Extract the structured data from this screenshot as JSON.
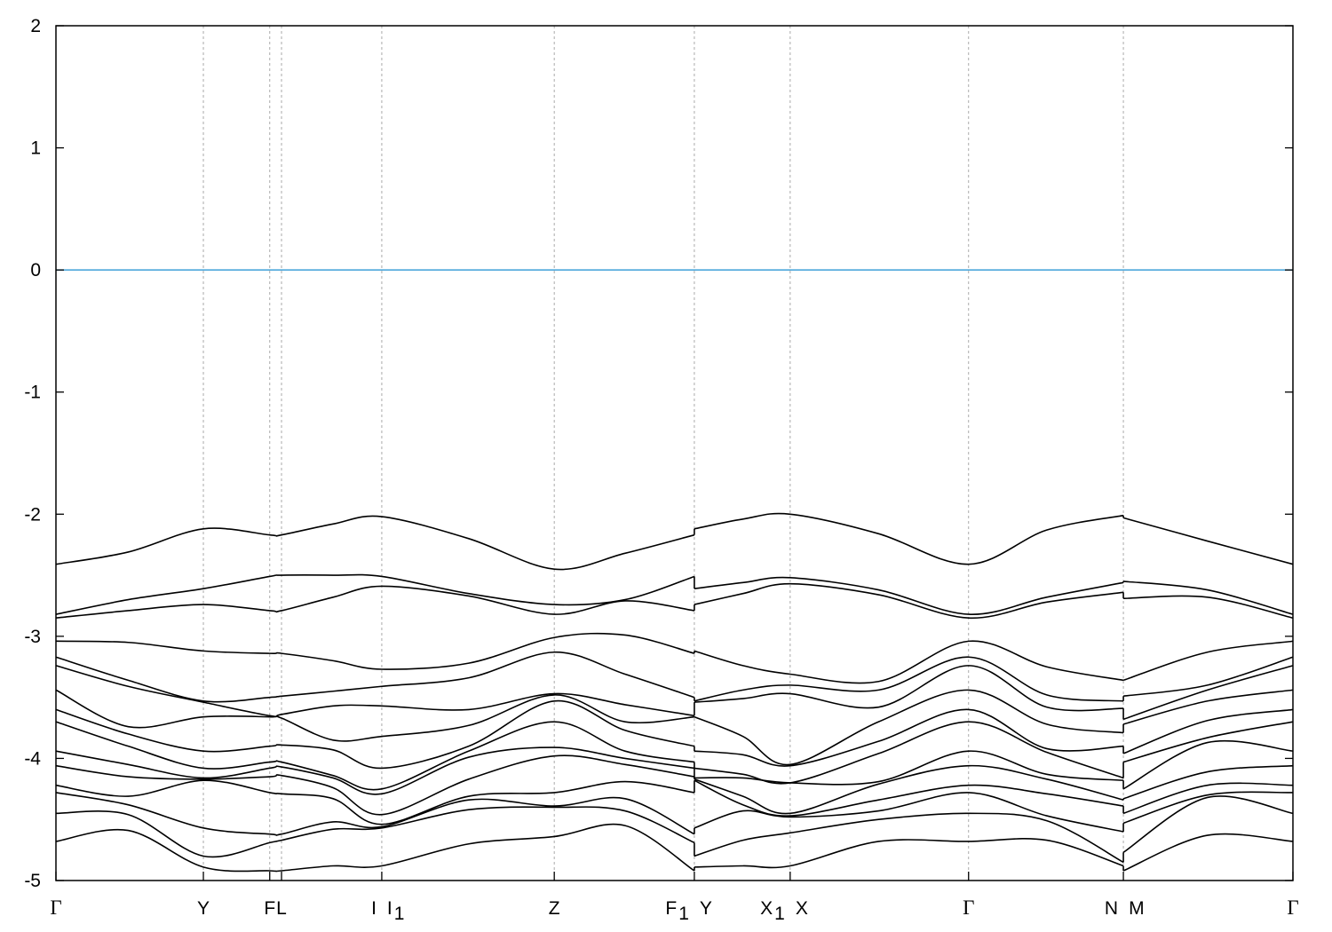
{
  "chart_data": {
    "type": "line",
    "title": "",
    "xlabel": "",
    "ylabel": "",
    "ylim": [
      -5,
      2
    ],
    "yticks": [
      "2",
      "1",
      "0",
      "-1",
      "-2",
      "-3",
      "-4",
      "-5"
    ],
    "ytick_values": [
      2,
      1,
      0,
      -1,
      -2,
      -3,
      -4,
      -5
    ],
    "xlim": [
      0,
      8.39
    ],
    "grid": "vertical dotted lines at high-symmetry points",
    "fermi_level": 0,
    "colors": {
      "bands": "#000000",
      "fermi_line": "#3fa0d8",
      "grid": "#aaaaaa"
    },
    "ticks": [
      {
        "k": 0,
        "label": "Γ",
        "sub": "",
        "anchor": "middle"
      },
      {
        "k": 1.0,
        "label": "Y",
        "sub": "",
        "anchor": "middle"
      },
      {
        "k": 1.45,
        "label": "F",
        "sub": "",
        "anchor": "middle"
      },
      {
        "k": 1.53,
        "label": "L",
        "sub": "",
        "anchor": "middle"
      },
      {
        "k": 2.21,
        "label": "I",
        "sub": "",
        "anchor": "end"
      },
      {
        "k": 2.21,
        "label": "I",
        "sub": "1",
        "anchor": "start"
      },
      {
        "k": 3.38,
        "label": "Z",
        "sub": "",
        "anchor": "middle"
      },
      {
        "k": 4.33,
        "label": "F",
        "sub": "1",
        "anchor": "end"
      },
      {
        "k": 4.33,
        "label": "Y",
        "sub": "",
        "anchor": "start"
      },
      {
        "k": 4.98,
        "label": "X",
        "sub": "1",
        "anchor": "end"
      },
      {
        "k": 4.98,
        "label": "X",
        "sub": "",
        "anchor": "start"
      },
      {
        "k": 6.19,
        "label": "Γ",
        "sub": "",
        "anchor": "middle"
      },
      {
        "k": 7.24,
        "label": "N",
        "sub": "",
        "anchor": "end"
      },
      {
        "k": 7.24,
        "label": "M",
        "sub": "",
        "anchor": "start"
      },
      {
        "k": 8.39,
        "label": "Γ",
        "sub": "",
        "anchor": "middle"
      }
    ],
    "gridlines_k": [
      1.0,
      1.45,
      1.53,
      2.21,
      3.38,
      4.33,
      4.98,
      6.19,
      7.24
    ],
    "segments": [
      {
        "k": [
          0,
          0.49,
          1.0,
          1.45,
          1.53,
          1.88,
          2.21,
          2.8,
          3.38,
          3.86,
          4.33
        ],
        "energies": [
          [
            -2.41,
            -2.82,
            -2.85,
            -3.04,
            -3.17,
            -3.24,
            -3.44,
            -3.6,
            -3.7,
            -3.94,
            -4.06,
            -4.22,
            -4.28,
            -4.45,
            -4.68
          ],
          [
            -2.31,
            -2.7,
            -2.79,
            -3.05,
            -3.36,
            -3.41,
            -3.74,
            -3.8,
            -3.9,
            -4.05,
            -4.15,
            -4.31,
            -4.38,
            -4.46,
            -4.59
          ],
          [
            -2.12,
            -2.61,
            -2.74,
            -3.12,
            -3.53,
            -3.54,
            -3.66,
            -3.94,
            -4.08,
            -4.16,
            -4.17,
            -4.18,
            -4.57,
            -4.8,
            -4.89
          ],
          [
            -2.17,
            -2.51,
            -2.79,
            -3.14,
            -3.5,
            -3.65,
            -3.66,
            -3.9,
            -4.03,
            -4.08,
            -4.15,
            -4.28,
            -4.62,
            -4.69,
            -4.92
          ],
          [
            -2.17,
            -2.5,
            -2.79,
            -3.14,
            -3.49,
            -3.64,
            -3.67,
            -3.89,
            -4.03,
            -4.07,
            -4.14,
            -4.29,
            -4.62,
            -4.67,
            -4.92
          ],
          [
            -2.08,
            -2.5,
            -2.68,
            -3.2,
            -3.45,
            -3.57,
            -3.85,
            -3.93,
            -4.14,
            -4.16,
            -4.24,
            -4.33,
            -4.52,
            -4.58,
            -4.88
          ],
          [
            -2.02,
            -2.51,
            -2.59,
            -3.27,
            -3.41,
            -3.57,
            -3.82,
            -4.08,
            -4.25,
            -4.29,
            -4.46,
            -4.54,
            -4.56,
            -4.57,
            -4.88
          ],
          [
            -2.2,
            -2.65,
            -2.67,
            -3.22,
            -3.34,
            -3.6,
            -3.73,
            -3.9,
            -3.94,
            -3.99,
            -4.17,
            -4.31,
            -4.34,
            -4.42,
            -4.7
          ],
          [
            -2.45,
            -2.74,
            -2.82,
            -3.01,
            -3.13,
            -3.47,
            -3.48,
            -3.53,
            -3.7,
            -3.91,
            -3.98,
            -4.28,
            -4.39,
            -4.4,
            -4.64
          ],
          [
            -2.32,
            -2.7,
            -2.71,
            -2.99,
            -3.31,
            -3.56,
            -3.7,
            -3.77,
            -3.94,
            -4.0,
            -4.05,
            -4.19,
            -4.33,
            -4.43,
            -4.55
          ],
          [
            -2.17,
            -2.51,
            -2.79,
            -3.14,
            -3.5,
            -3.65,
            -3.66,
            -3.9,
            -4.03,
            -4.08,
            -4.15,
            -4.28,
            -4.62,
            -4.69,
            -4.92
          ]
        ]
      },
      {
        "k": [
          4.33,
          4.66,
          4.98,
          5.58,
          6.19,
          6.72,
          7.24
        ],
        "energies": [
          [
            -2.12,
            -2.61,
            -2.74,
            -3.12,
            -3.53,
            -3.54,
            -3.66,
            -3.94,
            -4.08,
            -4.16,
            -4.17,
            -4.18,
            -4.57,
            -4.8,
            -4.89
          ],
          [
            -2.04,
            -2.56,
            -2.65,
            -3.24,
            -3.44,
            -3.51,
            -3.82,
            -3.97,
            -4.13,
            -4.16,
            -4.31,
            -4.38,
            -4.43,
            -4.67,
            -4.88
          ],
          [
            -2.0,
            -2.52,
            -2.57,
            -3.31,
            -3.4,
            -3.47,
            -4.05,
            -4.06,
            -4.2,
            -4.2,
            -4.45,
            -4.47,
            -4.48,
            -4.61,
            -4.88
          ],
          [
            -2.16,
            -2.62,
            -2.66,
            -3.37,
            -3.44,
            -3.58,
            -3.7,
            -3.86,
            -3.96,
            -4.19,
            -4.21,
            -4.34,
            -4.43,
            -4.5,
            -4.68
          ],
          [
            -2.41,
            -2.82,
            -2.85,
            -3.04,
            -3.17,
            -3.24,
            -3.44,
            -3.6,
            -3.7,
            -3.94,
            -4.06,
            -4.22,
            -4.28,
            -4.45,
            -4.68
          ],
          [
            -2.13,
            -2.68,
            -2.72,
            -3.25,
            -3.48,
            -3.58,
            -3.72,
            -3.92,
            -3.95,
            -4.13,
            -4.17,
            -4.29,
            -4.47,
            -4.51,
            -4.67
          ],
          [
            -2.01,
            -2.56,
            -2.64,
            -3.36,
            -3.53,
            -3.59,
            -3.79,
            -3.9,
            -4.16,
            -4.18,
            -4.34,
            -4.39,
            -4.6,
            -4.85,
            -4.88
          ]
        ]
      },
      {
        "k": [
          7.24,
          7.81,
          8.39
        ],
        "energies": [
          [
            -2.03,
            -2.55,
            -2.69,
            -3.36,
            -3.49,
            -3.68,
            -3.72,
            -3.96,
            -4.03,
            -4.25,
            -4.33,
            -4.45,
            -4.53,
            -4.77,
            -4.92
          ],
          [
            -2.22,
            -2.62,
            -2.68,
            -3.13,
            -3.4,
            -3.44,
            -3.53,
            -3.69,
            -3.83,
            -3.87,
            -4.11,
            -4.22,
            -4.3,
            -4.32,
            -4.63
          ],
          [
            -2.41,
            -2.82,
            -2.85,
            -3.04,
            -3.17,
            -3.24,
            -3.44,
            -3.6,
            -3.7,
            -3.94,
            -4.06,
            -4.22,
            -4.28,
            -4.45,
            -4.68
          ]
        ]
      }
    ]
  }
}
